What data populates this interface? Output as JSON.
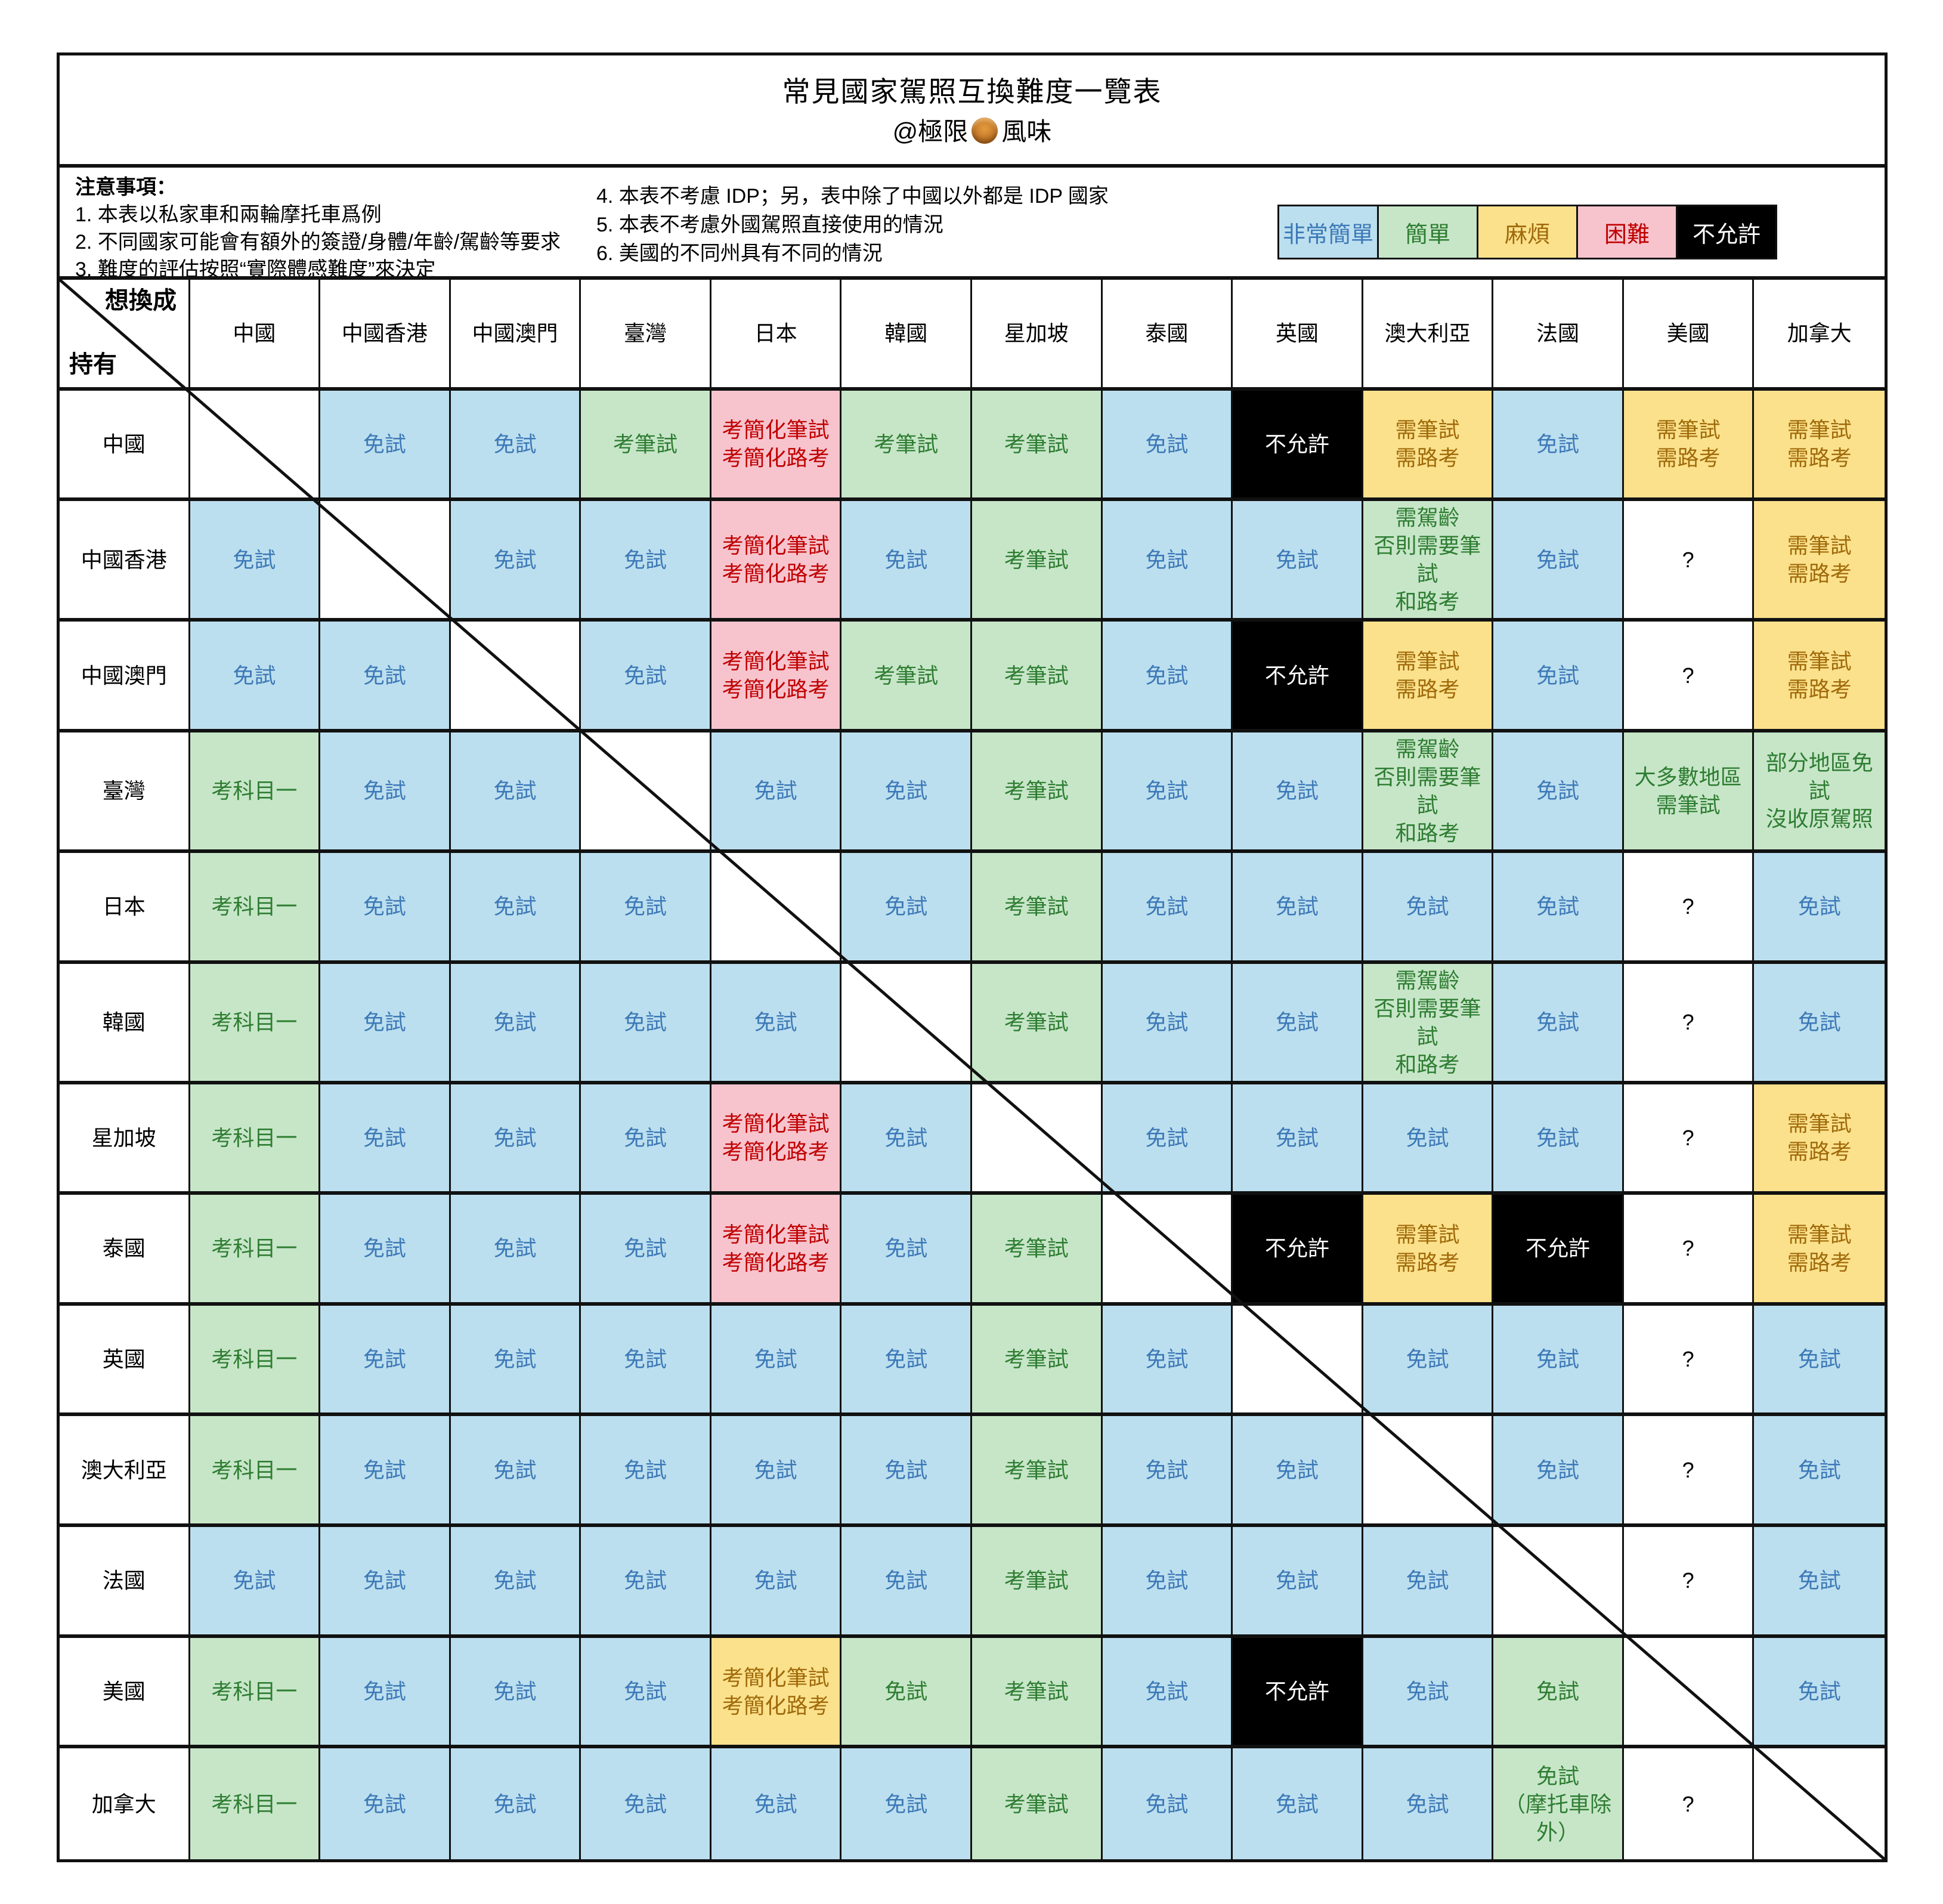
{
  "title": "常見國家駕照互換難度一覽表",
  "subtitle": {
    "prefix": "@極限",
    "icon": "mooncake",
    "suffix": "風味"
  },
  "notes": {
    "heading": "注意事項：",
    "left": [
      "1. 本表以私家車和兩輪摩托車爲例",
      "2. 不同國家可能會有額外的簽證/身體/年齡/駕齡等要求",
      "3. 難度的評估按照“實際體感難度”來決定"
    ],
    "right": [
      "4. 本表不考慮 IDP；另，表中除了中國以外都是 IDP 國家",
      "5. 本表不考慮外國駕照直接使用的情況",
      "6. 美國的不同州具有不同的情況"
    ]
  },
  "legend": [
    {
      "key": "very-easy",
      "label": "非常簡單",
      "bg": "#BCDFEF",
      "fg": "#3D79B7"
    },
    {
      "key": "easy",
      "label": "簡單",
      "bg": "#C7E6C8",
      "fg": "#2E7D32"
    },
    {
      "key": "hassle",
      "label": "麻煩",
      "bg": "#FBE18C",
      "fg": "#A06A0A"
    },
    {
      "key": "hard",
      "label": "困難",
      "bg": "#F7C4CE",
      "fg": "#C00000"
    },
    {
      "key": "not-allowed",
      "label": "不允許",
      "bg": "#000000",
      "fg": "#FFFFFF"
    }
  ],
  "chart_data": {
    "type": "table",
    "title": "常見國家駕照互換難度一覽表",
    "corner": {
      "top_label": "想換成",
      "side_label": "持有"
    },
    "columns": [
      "中國",
      "中國香港",
      "中國澳門",
      "臺灣",
      "日本",
      "韓國",
      "星加坡",
      "泰國",
      "英國",
      "澳大利亞",
      "法國",
      "美國",
      "加拿大"
    ],
    "level_names": {
      "very-easy": "非常簡單",
      "easy": "簡單",
      "hassle": "麻煩",
      "hard": "困難",
      "not-allowed": "不允許",
      "unknown": "?",
      "self": "—"
    },
    "rows": [
      {
        "label": "中國",
        "cells": [
          {
            "c": "self"
          },
          {
            "t": "免試",
            "c": "very-easy"
          },
          {
            "t": "免試",
            "c": "very-easy"
          },
          {
            "t": "考筆試",
            "c": "easy"
          },
          {
            "t": "考簡化筆試\n考簡化路考",
            "c": "hard"
          },
          {
            "t": "考筆試",
            "c": "easy"
          },
          {
            "t": "考筆試",
            "c": "easy"
          },
          {
            "t": "免試",
            "c": "very-easy"
          },
          {
            "t": "不允許",
            "c": "not-allowed"
          },
          {
            "t": "需筆試\n需路考",
            "c": "hassle"
          },
          {
            "t": "免試",
            "c": "very-easy"
          },
          {
            "t": "需筆試\n需路考",
            "c": "hassle"
          },
          {
            "t": "需筆試\n需路考",
            "c": "hassle"
          }
        ]
      },
      {
        "label": "中國香港",
        "cells": [
          {
            "t": "免試",
            "c": "very-easy"
          },
          {
            "c": "self"
          },
          {
            "t": "免試",
            "c": "very-easy"
          },
          {
            "t": "免試",
            "c": "very-easy"
          },
          {
            "t": "考簡化筆試\n考簡化路考",
            "c": "hard"
          },
          {
            "t": "免試",
            "c": "very-easy"
          },
          {
            "t": "考筆試",
            "c": "easy"
          },
          {
            "t": "免試",
            "c": "very-easy"
          },
          {
            "t": "免試",
            "c": "very-easy"
          },
          {
            "t": "需駕齡\n否則需要筆試\n和路考",
            "c": "easy"
          },
          {
            "t": "免試",
            "c": "very-easy"
          },
          {
            "t": "?",
            "c": "unknown"
          },
          {
            "t": "需筆試\n需路考",
            "c": "hassle"
          }
        ]
      },
      {
        "label": "中國澳門",
        "cells": [
          {
            "t": "免試",
            "c": "very-easy"
          },
          {
            "t": "免試",
            "c": "very-easy"
          },
          {
            "c": "self"
          },
          {
            "t": "免試",
            "c": "very-easy"
          },
          {
            "t": "考簡化筆試\n考簡化路考",
            "c": "hard"
          },
          {
            "t": "考筆試",
            "c": "easy"
          },
          {
            "t": "考筆試",
            "c": "easy"
          },
          {
            "t": "免試",
            "c": "very-easy"
          },
          {
            "t": "不允許",
            "c": "not-allowed"
          },
          {
            "t": "需筆試\n需路考",
            "c": "hassle"
          },
          {
            "t": "免試",
            "c": "very-easy"
          },
          {
            "t": "?",
            "c": "unknown"
          },
          {
            "t": "需筆試\n需路考",
            "c": "hassle"
          }
        ]
      },
      {
        "label": "臺灣",
        "cells": [
          {
            "t": "考科目一",
            "c": "easy"
          },
          {
            "t": "免試",
            "c": "very-easy"
          },
          {
            "t": "免試",
            "c": "very-easy"
          },
          {
            "c": "self"
          },
          {
            "t": "免試",
            "c": "very-easy"
          },
          {
            "t": "免試",
            "c": "very-easy"
          },
          {
            "t": "考筆試",
            "c": "easy"
          },
          {
            "t": "免試",
            "c": "very-easy"
          },
          {
            "t": "免試",
            "c": "very-easy"
          },
          {
            "t": "需駕齡\n否則需要筆試\n和路考",
            "c": "easy"
          },
          {
            "t": "免試",
            "c": "very-easy"
          },
          {
            "t": "大多數地區\n需筆試",
            "c": "easy"
          },
          {
            "t": "部分地區免試\n沒收原駕照",
            "c": "easy"
          }
        ]
      },
      {
        "label": "日本",
        "cells": [
          {
            "t": "考科目一",
            "c": "easy"
          },
          {
            "t": "免試",
            "c": "very-easy"
          },
          {
            "t": "免試",
            "c": "very-easy"
          },
          {
            "t": "免試",
            "c": "very-easy"
          },
          {
            "c": "self"
          },
          {
            "t": "免試",
            "c": "very-easy"
          },
          {
            "t": "考筆試",
            "c": "easy"
          },
          {
            "t": "免試",
            "c": "very-easy"
          },
          {
            "t": "免試",
            "c": "very-easy"
          },
          {
            "t": "免試",
            "c": "very-easy"
          },
          {
            "t": "免試",
            "c": "very-easy"
          },
          {
            "t": "?",
            "c": "unknown"
          },
          {
            "t": "免試",
            "c": "very-easy"
          }
        ]
      },
      {
        "label": "韓國",
        "cells": [
          {
            "t": "考科目一",
            "c": "easy"
          },
          {
            "t": "免試",
            "c": "very-easy"
          },
          {
            "t": "免試",
            "c": "very-easy"
          },
          {
            "t": "免試",
            "c": "very-easy"
          },
          {
            "t": "免試",
            "c": "very-easy"
          },
          {
            "c": "self"
          },
          {
            "t": "考筆試",
            "c": "easy"
          },
          {
            "t": "免試",
            "c": "very-easy"
          },
          {
            "t": "免試",
            "c": "very-easy"
          },
          {
            "t": "需駕齡\n否則需要筆試\n和路考",
            "c": "easy"
          },
          {
            "t": "免試",
            "c": "very-easy"
          },
          {
            "t": "?",
            "c": "unknown"
          },
          {
            "t": "免試",
            "c": "very-easy"
          }
        ]
      },
      {
        "label": "星加坡",
        "cells": [
          {
            "t": "考科目一",
            "c": "easy"
          },
          {
            "t": "免試",
            "c": "very-easy"
          },
          {
            "t": "免試",
            "c": "very-easy"
          },
          {
            "t": "免試",
            "c": "very-easy"
          },
          {
            "t": "考簡化筆試\n考簡化路考",
            "c": "hard"
          },
          {
            "t": "免試",
            "c": "very-easy"
          },
          {
            "c": "self"
          },
          {
            "t": "免試",
            "c": "very-easy"
          },
          {
            "t": "免試",
            "c": "very-easy"
          },
          {
            "t": "免試",
            "c": "very-easy"
          },
          {
            "t": "免試",
            "c": "very-easy"
          },
          {
            "t": "?",
            "c": "unknown"
          },
          {
            "t": "需筆試\n需路考",
            "c": "hassle"
          }
        ]
      },
      {
        "label": "泰國",
        "cells": [
          {
            "t": "考科目一",
            "c": "easy"
          },
          {
            "t": "免試",
            "c": "very-easy"
          },
          {
            "t": "免試",
            "c": "very-easy"
          },
          {
            "t": "免試",
            "c": "very-easy"
          },
          {
            "t": "考簡化筆試\n考簡化路考",
            "c": "hard"
          },
          {
            "t": "免試",
            "c": "very-easy"
          },
          {
            "t": "考筆試",
            "c": "easy"
          },
          {
            "c": "self"
          },
          {
            "t": "不允許",
            "c": "not-allowed"
          },
          {
            "t": "需筆試\n需路考",
            "c": "hassle"
          },
          {
            "t": "不允許",
            "c": "not-allowed"
          },
          {
            "t": "?",
            "c": "unknown"
          },
          {
            "t": "需筆試\n需路考",
            "c": "hassle"
          }
        ]
      },
      {
        "label": "英國",
        "cells": [
          {
            "t": "考科目一",
            "c": "easy"
          },
          {
            "t": "免試",
            "c": "very-easy"
          },
          {
            "t": "免試",
            "c": "very-easy"
          },
          {
            "t": "免試",
            "c": "very-easy"
          },
          {
            "t": "免試",
            "c": "very-easy"
          },
          {
            "t": "免試",
            "c": "very-easy"
          },
          {
            "t": "考筆試",
            "c": "easy"
          },
          {
            "t": "免試",
            "c": "very-easy"
          },
          {
            "c": "self"
          },
          {
            "t": "免試",
            "c": "very-easy"
          },
          {
            "t": "免試",
            "c": "very-easy"
          },
          {
            "t": "?",
            "c": "unknown"
          },
          {
            "t": "免試",
            "c": "very-easy"
          }
        ]
      },
      {
        "label": "澳大利亞",
        "cells": [
          {
            "t": "考科目一",
            "c": "easy"
          },
          {
            "t": "免試",
            "c": "very-easy"
          },
          {
            "t": "免試",
            "c": "very-easy"
          },
          {
            "t": "免試",
            "c": "very-easy"
          },
          {
            "t": "免試",
            "c": "very-easy"
          },
          {
            "t": "免試",
            "c": "very-easy"
          },
          {
            "t": "考筆試",
            "c": "easy"
          },
          {
            "t": "免試",
            "c": "very-easy"
          },
          {
            "t": "免試",
            "c": "very-easy"
          },
          {
            "c": "self"
          },
          {
            "t": "免試",
            "c": "very-easy"
          },
          {
            "t": "?",
            "c": "unknown"
          },
          {
            "t": "免試",
            "c": "very-easy"
          }
        ]
      },
      {
        "label": "法國",
        "cells": [
          {
            "t": "免試",
            "c": "very-easy"
          },
          {
            "t": "免試",
            "c": "very-easy"
          },
          {
            "t": "免試",
            "c": "very-easy"
          },
          {
            "t": "免試",
            "c": "very-easy"
          },
          {
            "t": "免試",
            "c": "very-easy"
          },
          {
            "t": "免試",
            "c": "very-easy"
          },
          {
            "t": "考筆試",
            "c": "easy"
          },
          {
            "t": "免試",
            "c": "very-easy"
          },
          {
            "t": "免試",
            "c": "very-easy"
          },
          {
            "t": "免試",
            "c": "very-easy"
          },
          {
            "c": "self"
          },
          {
            "t": "?",
            "c": "unknown"
          },
          {
            "t": "免試",
            "c": "very-easy"
          }
        ]
      },
      {
        "label": "美國",
        "cells": [
          {
            "t": "考科目一",
            "c": "easy"
          },
          {
            "t": "免試",
            "c": "very-easy"
          },
          {
            "t": "免試",
            "c": "very-easy"
          },
          {
            "t": "免試",
            "c": "very-easy"
          },
          {
            "t": "考簡化筆試\n考簡化路考",
            "c": "hassle"
          },
          {
            "t": "免試",
            "c": "easy"
          },
          {
            "t": "考筆試",
            "c": "easy"
          },
          {
            "t": "免試",
            "c": "very-easy"
          },
          {
            "t": "不允許",
            "c": "not-allowed"
          },
          {
            "t": "免試",
            "c": "very-easy"
          },
          {
            "t": "免試",
            "c": "easy"
          },
          {
            "c": "self"
          },
          {
            "t": "免試",
            "c": "very-easy"
          }
        ]
      },
      {
        "label": "加拿大",
        "cells": [
          {
            "t": "考科目一",
            "c": "easy"
          },
          {
            "t": "免試",
            "c": "very-easy"
          },
          {
            "t": "免試",
            "c": "very-easy"
          },
          {
            "t": "免試",
            "c": "very-easy"
          },
          {
            "t": "免試",
            "c": "very-easy"
          },
          {
            "t": "免試",
            "c": "very-easy"
          },
          {
            "t": "考筆試",
            "c": "easy"
          },
          {
            "t": "免試",
            "c": "very-easy"
          },
          {
            "t": "免試",
            "c": "very-easy"
          },
          {
            "t": "免試",
            "c": "very-easy"
          },
          {
            "t": "免試\n（摩托車除外）",
            "c": "easy"
          },
          {
            "t": "?",
            "c": "unknown"
          },
          {
            "c": "self"
          }
        ]
      }
    ]
  }
}
